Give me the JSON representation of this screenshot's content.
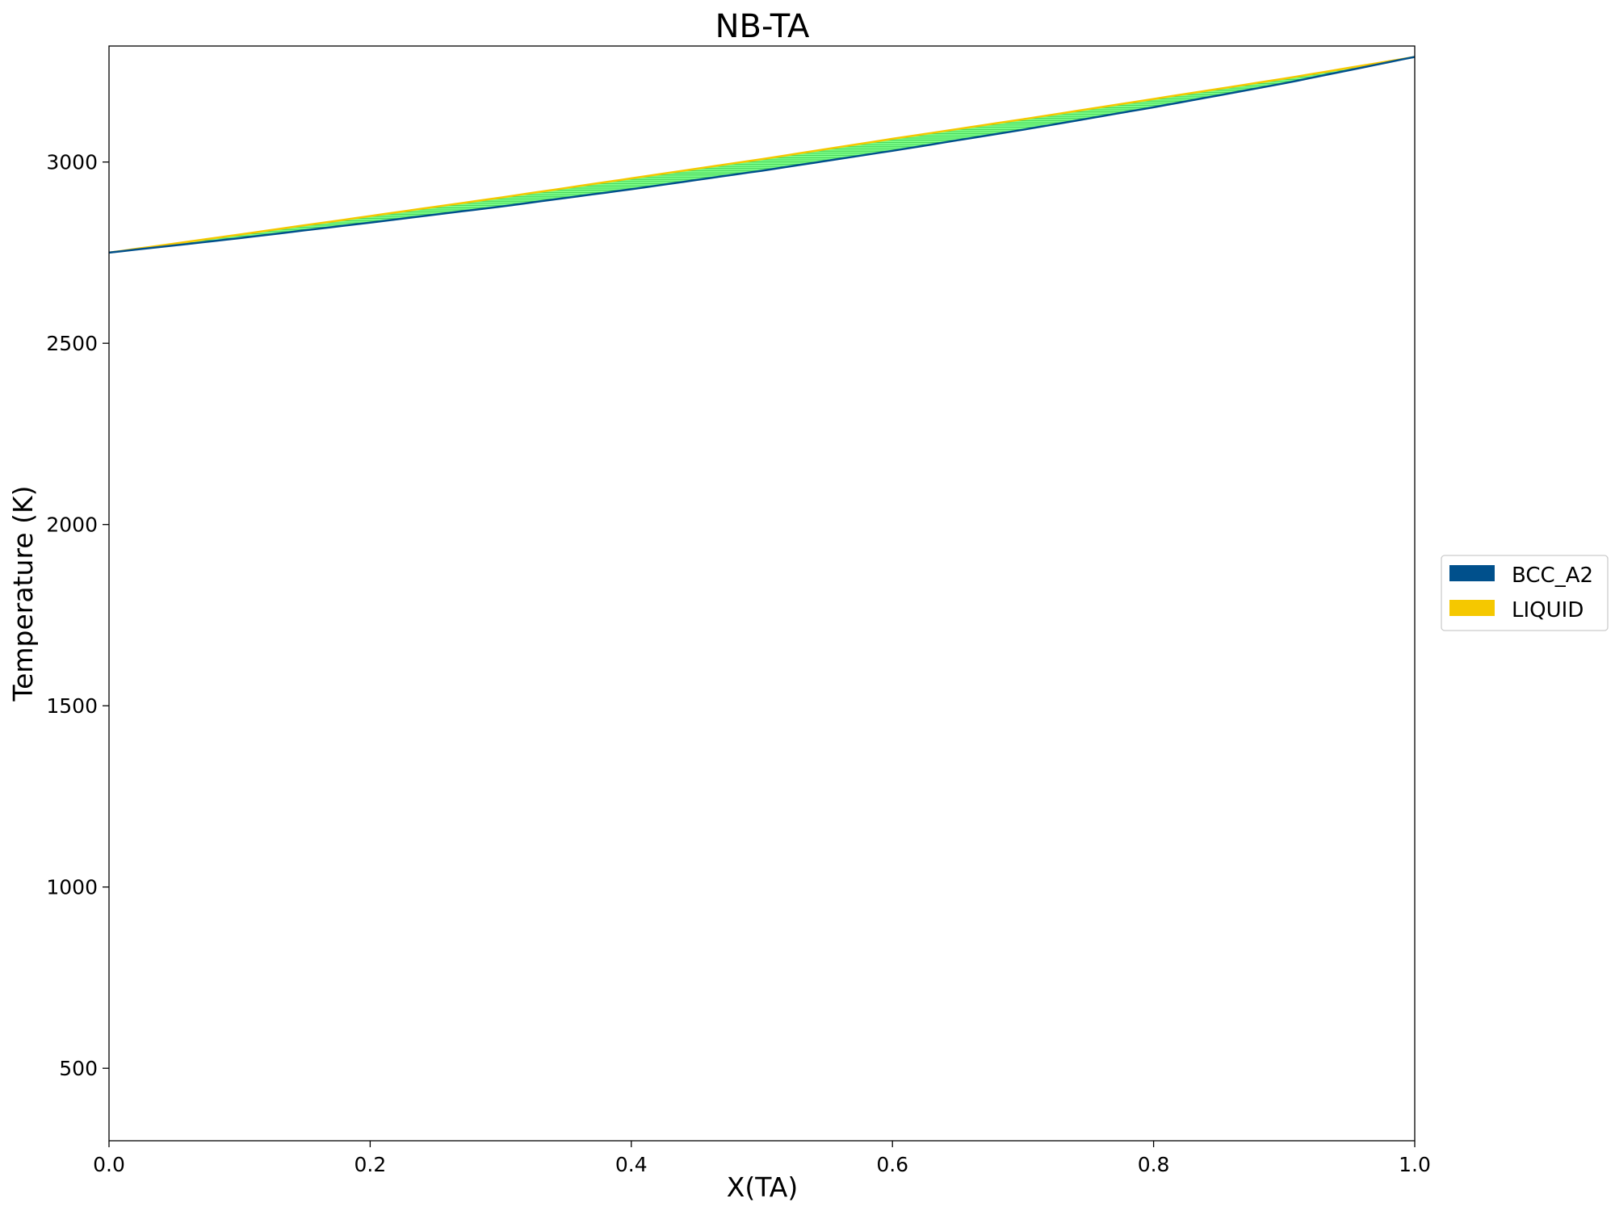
{
  "chart_data": {
    "type": "area",
    "title": "NB-TA",
    "xlabel": "X(TA)",
    "ylabel": "Temperature (K)",
    "xlim": [
      0.0,
      1.0
    ],
    "ylim": [
      300,
      3320
    ],
    "xticks": [
      "0.0",
      "0.2",
      "0.4",
      "0.6",
      "0.8",
      "1.0"
    ],
    "yticks": [
      "500",
      "1000",
      "1500",
      "2000",
      "2500",
      "3000"
    ],
    "grid": false,
    "legend_position": "right",
    "series": [
      {
        "name": "BCC_A2",
        "color": "#00508c",
        "x": [
          0.0,
          0.1,
          0.2,
          0.3,
          0.4,
          0.5,
          0.6,
          0.7,
          0.8,
          0.9,
          1.0
        ],
        "y": [
          2750,
          2790,
          2833,
          2877,
          2925,
          2976,
          3031,
          3089,
          3151,
          3217,
          3290
        ]
      },
      {
        "name": "LIQUID",
        "color": "#f5c800",
        "x": [
          0.0,
          0.1,
          0.2,
          0.3,
          0.4,
          0.5,
          0.6,
          0.7,
          0.8,
          0.9,
          1.0
        ],
        "y": [
          2750,
          2800,
          2851,
          2902,
          2955,
          3008,
          3064,
          3118,
          3174,
          3230,
          3290
        ]
      }
    ],
    "two_phase_fill": "#7dff8a",
    "tie_line_color": "#3cc850"
  }
}
